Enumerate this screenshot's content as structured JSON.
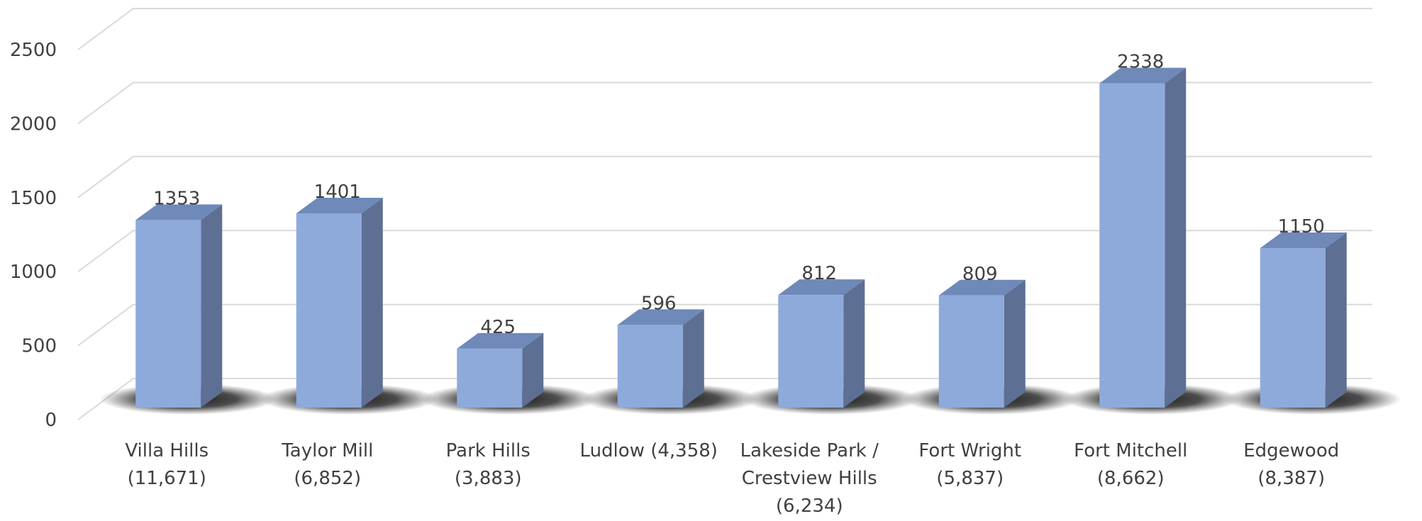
{
  "chart_data": {
    "type": "bar",
    "title": "",
    "xlabel": "",
    "ylabel": "",
    "ylim": [
      0,
      2500
    ],
    "yticks": [
      0,
      500,
      1000,
      1500,
      2000,
      2500
    ],
    "grid": true,
    "style": "3d-column",
    "colors": {
      "front": "#8eaadb",
      "side": "#5d6f93",
      "top": "#6f89b8",
      "grid": "#d9d9d9",
      "text": "#404040"
    },
    "categories": [
      [
        "Villa Hills",
        "(11,671)"
      ],
      [
        "Taylor Mill",
        "(6,852)"
      ],
      [
        "Park Hills",
        "(3,883)"
      ],
      [
        "Ludlow (4,358)"
      ],
      [
        "Lakeside Park /",
        "Crestview Hills",
        "(6,234)"
      ],
      [
        "Fort Wright",
        "(5,837)"
      ],
      [
        "Fort Mitchell",
        "(8,662)"
      ],
      [
        "Edgewood",
        "(8,387)"
      ]
    ],
    "values": [
      1353,
      1401,
      425,
      596,
      812,
      809,
      2338,
      1150
    ]
  }
}
